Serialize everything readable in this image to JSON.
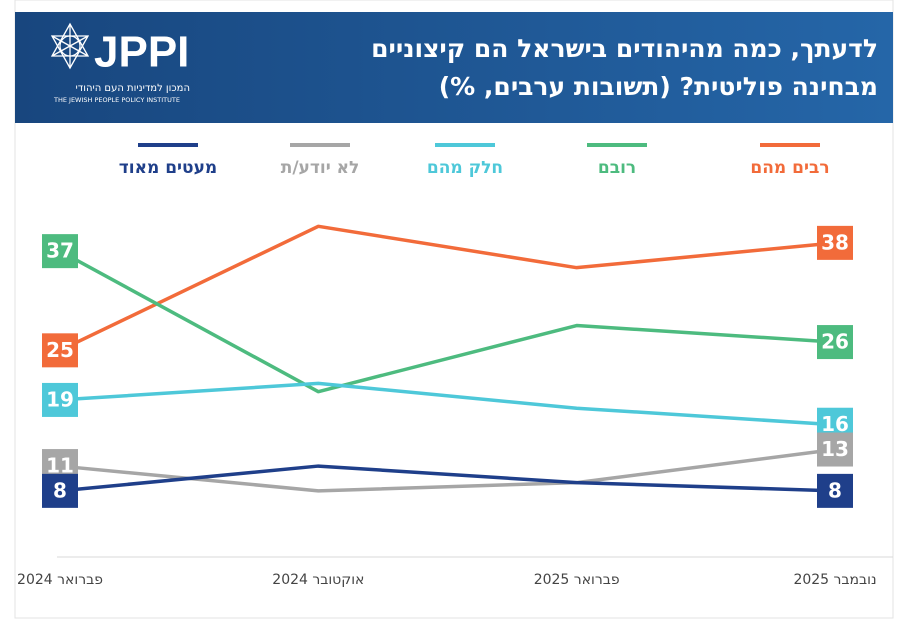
{
  "chart_data": {
    "type": "line",
    "title": [
      "לדעתך, כמה מהיהודים בישראל הם קיצוניים",
      "מבחינה פוליטית? (תשובות ערבים, %)"
    ],
    "logo": {
      "name": "JPPI",
      "hebrew": "המכון למדיניות העם היהודי",
      "english": "THE JEWISH PEOPLE POLICY INSTITUTE"
    },
    "categories": [
      "פברואר 2024",
      "אוקטובר 2024",
      "פברואר 2025",
      "נובמבר 2025"
    ],
    "ylim": [
      0,
      45
    ],
    "series": [
      {
        "name": "רבים מהם",
        "color": "#f26b3a",
        "values": [
          25,
          40,
          35,
          38
        ]
      },
      {
        "name": "רובם",
        "color": "#4dbb7f",
        "values": [
          37,
          20,
          28,
          26
        ]
      },
      {
        "name": "חלק מהם",
        "color": "#4ec8d9",
        "values": [
          19,
          21,
          18,
          16
        ]
      },
      {
        "name": "לא יודע/ת",
        "color": "#a6a6a6",
        "values": [
          11,
          8,
          9,
          13
        ]
      },
      {
        "name": "מעטים מאוד",
        "color": "#1f3f8a",
        "values": [
          8,
          11,
          9,
          8
        ]
      }
    ]
  }
}
